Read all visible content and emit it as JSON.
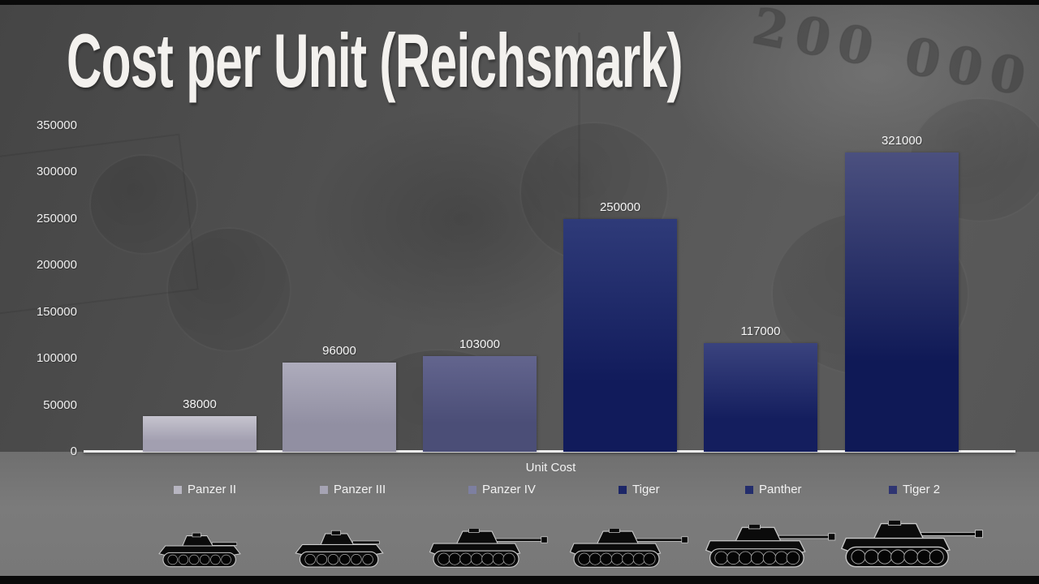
{
  "title": "Cost per Unit (Reichsmark)",
  "background": {
    "watermark_text": "200 000"
  },
  "chart_data": {
    "type": "bar",
    "title": "Cost per Unit (Reichsmark)",
    "xlabel": "Unit Cost",
    "ylabel": "",
    "ylim": [
      0,
      350000
    ],
    "ytick_interval": 50000,
    "ytick_labels": [
      "350000",
      "300000",
      "250000",
      "200000",
      "150000",
      "100000",
      "50000",
      "0"
    ],
    "ytick_values": [
      350000,
      300000,
      250000,
      200000,
      150000,
      100000,
      50000,
      0
    ],
    "categories": [
      "Panzer II",
      "Panzer III",
      "Panzer IV",
      "Tiger",
      "Panther",
      "Tiger 2"
    ],
    "values": [
      38000,
      96000,
      103000,
      250000,
      117000,
      321000
    ],
    "grid": false,
    "legend_position": "bottom",
    "bar_colors": [
      {
        "top": "#c6c4cf",
        "bottom": "#a29fb0"
      },
      {
        "top": "#aeacbc",
        "bottom": "#918fa2"
      },
      {
        "top": "#63658e",
        "bottom": "#4b4e77"
      },
      {
        "top": "#2f3b79",
        "bottom": "#111b5b"
      },
      {
        "top": "#3a437e",
        "bottom": "#141e5e"
      },
      {
        "top": "#4b507f",
        "bottom": "#0f1956"
      }
    ],
    "legend_swatch_colors": [
      "#b7b5c1",
      "#a5a3b3",
      "#7d7fa0",
      "#1c2667",
      "#232d6c",
      "#2f3572"
    ],
    "icons": [
      "tank-short-barrel",
      "tank-short-barrel",
      "tank-long-barrel",
      "tank-long-barrel",
      "tank-long-barrel",
      "tank-long-barrel"
    ]
  }
}
